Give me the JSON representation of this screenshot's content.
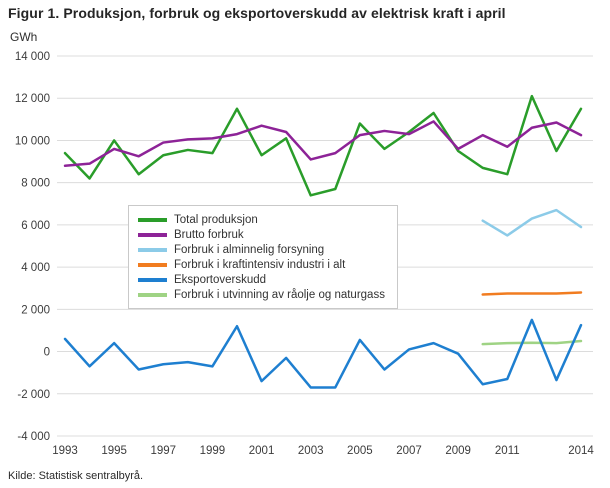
{
  "figure": {
    "title": "Figur 1. Produksjon, forbruk og eksportoverskudd av elektrisk kraft i april",
    "unit_label": "GWh",
    "source": "Kilde: Statistisk sentralbyrå."
  },
  "chart_data": {
    "type": "line",
    "title": "Figur 1. Produksjon, forbruk og eksportoverskudd av elektrisk kraft i april",
    "xlabel": "",
    "ylabel": "GWh",
    "ylim": [
      -4000,
      14000
    ],
    "ytick_step": 2000,
    "grid": "horizontal",
    "legend_position": "inside-left",
    "x": [
      1993,
      1994,
      1995,
      1996,
      1997,
      1998,
      1999,
      2000,
      2001,
      2002,
      2003,
      2004,
      2005,
      2006,
      2007,
      2008,
      2009,
      2010,
      2011,
      2012,
      2013,
      2014
    ],
    "xtick_labels": [
      1993,
      1995,
      1997,
      1999,
      2001,
      2003,
      2005,
      2007,
      2009,
      2011,
      2014
    ],
    "draw_order": [
      0,
      1,
      2,
      3,
      5,
      4
    ],
    "series": [
      {
        "name": "Total produksjon",
        "color": "#2a9d2a",
        "start_year": 1993,
        "values": [
          9400,
          8200,
          10000,
          8400,
          9300,
          9550,
          9400,
          11500,
          9300,
          10100,
          7400,
          7700,
          10800,
          9600,
          10400,
          11300,
          9500,
          8700,
          8400,
          12100,
          9500,
          11500
        ]
      },
      {
        "name": "Brutto forbruk",
        "color": "#8d2397",
        "start_year": 1993,
        "values": [
          8800,
          8900,
          9600,
          9250,
          9900,
          10050,
          10100,
          10300,
          10700,
          10400,
          9100,
          9400,
          10250,
          10450,
          10300,
          10900,
          9600,
          10250,
          9700,
          10600,
          10850,
          10250
        ]
      },
      {
        "name": "Forbruk i alminnelig forsyning",
        "color": "#8ccbe8",
        "start_year": 2010,
        "values": [
          6200,
          5500,
          6300,
          6700,
          5900
        ]
      },
      {
        "name": "Forbruk i kraftintensiv industri i alt",
        "color": "#f17c20",
        "start_year": 2010,
        "values": [
          2700,
          2750,
          2750,
          2750,
          2800
        ]
      },
      {
        "name": "Eksportoverskudd",
        "color": "#1e7fd0",
        "start_year": 1993,
        "values": [
          600,
          -700,
          400,
          -850,
          -600,
          -500,
          -700,
          1200,
          -1400,
          -300,
          -1700,
          -1700,
          550,
          -850,
          100,
          400,
          -100,
          -1550,
          -1300,
          1500,
          -1350,
          1250
        ]
      },
      {
        "name": "Forbruk i utvinning av råolje og naturgass",
        "color": "#9fd384",
        "start_year": 2010,
        "values": [
          350,
          400,
          420,
          400,
          500
        ]
      }
    ]
  }
}
